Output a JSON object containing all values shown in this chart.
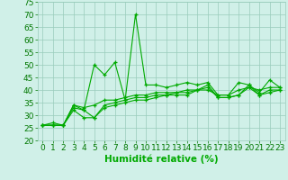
{
  "x": [
    0,
    1,
    2,
    3,
    4,
    5,
    6,
    7,
    8,
    9,
    10,
    11,
    12,
    13,
    14,
    15,
    16,
    17,
    18,
    19,
    20,
    21,
    22,
    23
  ],
  "series": [
    [
      26,
      27,
      26,
      34,
      32,
      50,
      46,
      51,
      36,
      70,
      42,
      42,
      41,
      42,
      43,
      42,
      43,
      38,
      38,
      43,
      42,
      39,
      44,
      41
    ],
    [
      26,
      26,
      26,
      34,
      33,
      34,
      36,
      36,
      37,
      38,
      38,
      39,
      39,
      39,
      40,
      40,
      40,
      38,
      38,
      40,
      41,
      40,
      41,
      41
    ],
    [
      26,
      26,
      26,
      33,
      32,
      29,
      34,
      35,
      36,
      37,
      37,
      38,
      38,
      39,
      39,
      40,
      42,
      37,
      37,
      38,
      42,
      38,
      40,
      40
    ],
    [
      26,
      26,
      26,
      32,
      29,
      29,
      33,
      34,
      35,
      36,
      36,
      37,
      38,
      38,
      38,
      40,
      41,
      37,
      37,
      38,
      41,
      38,
      39,
      40
    ]
  ],
  "xlabel": "Humidité relative (%)",
  "ylim": [
    20,
    75
  ],
  "yticks": [
    20,
    25,
    30,
    35,
    40,
    45,
    50,
    55,
    60,
    65,
    70,
    75
  ],
  "xticks": [
    0,
    1,
    2,
    3,
    4,
    5,
    6,
    7,
    8,
    9,
    10,
    11,
    12,
    13,
    14,
    15,
    16,
    17,
    18,
    19,
    20,
    21,
    22,
    23
  ],
  "line_color": "#00aa00",
  "marker": "+",
  "bg_color": "#d0f0e8",
  "grid_color": "#99ccbb",
  "xlabel_color": "#00aa00",
  "xlabel_fontsize": 7.5,
  "tick_fontsize": 6.5,
  "tick_color": "#007700"
}
